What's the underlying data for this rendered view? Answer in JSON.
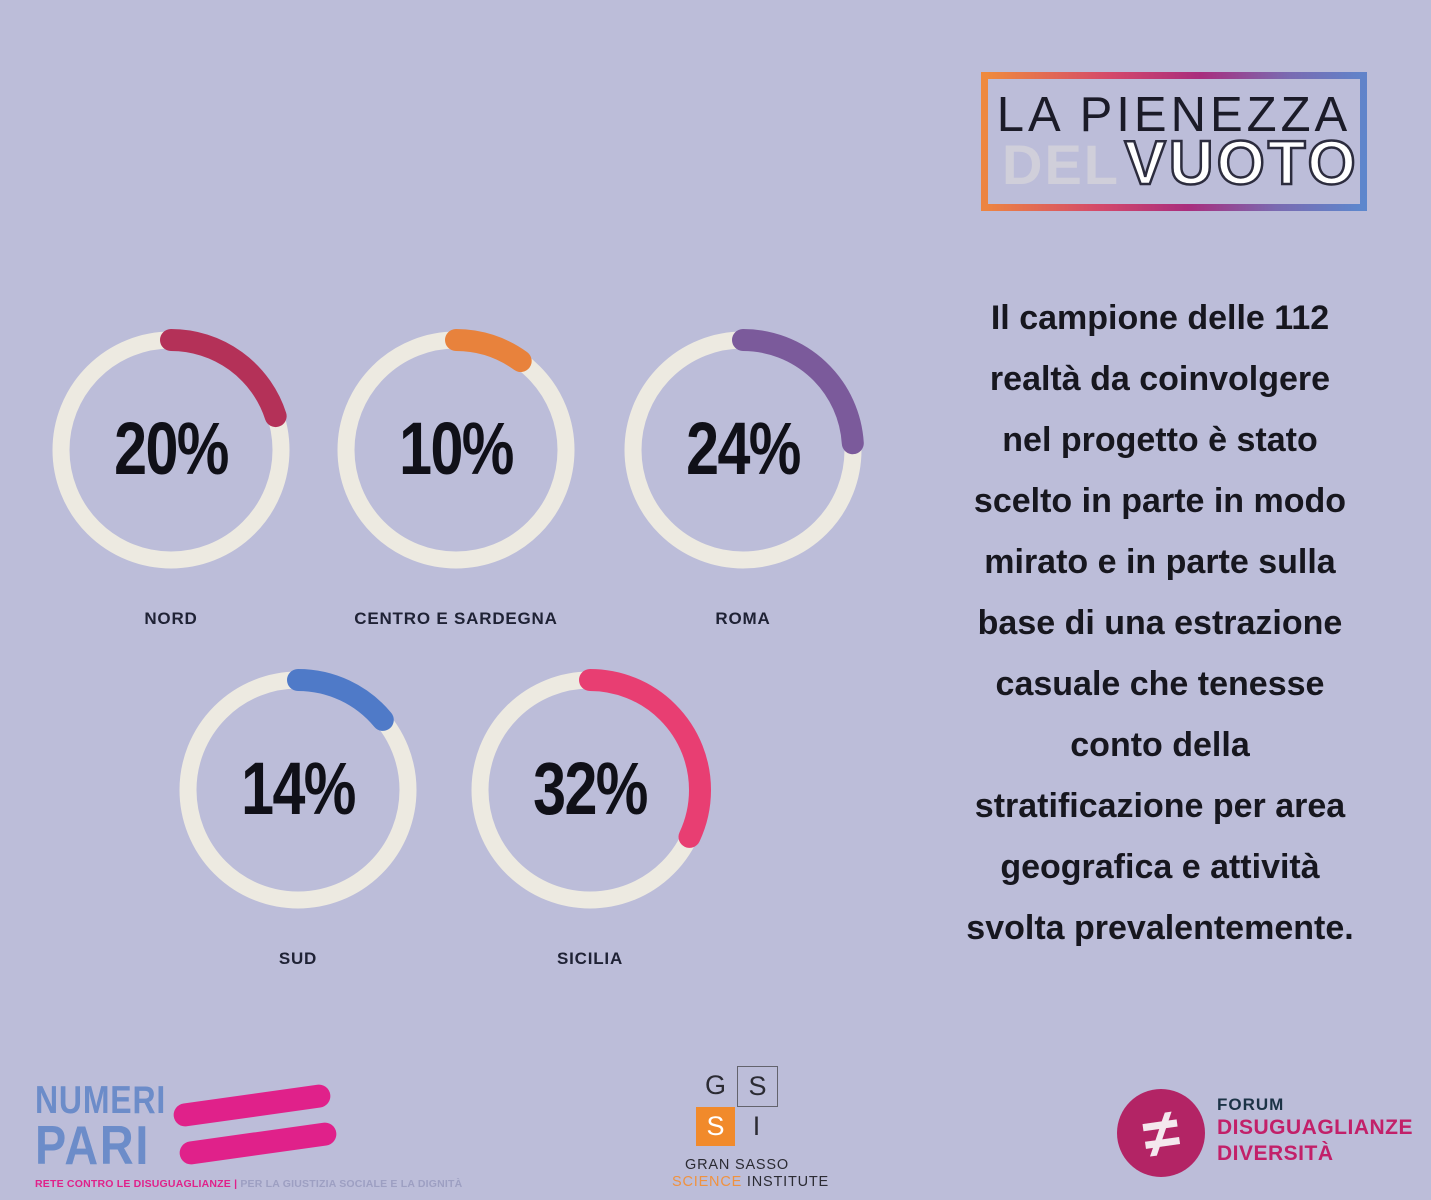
{
  "colors": {
    "background": "#bcbdd9",
    "ring": "#edeae1",
    "text_dark": "#17171f"
  },
  "header_logo": {
    "title_line1": "LA PIENEZZA",
    "title_line2_faint": "DEL",
    "title_line2": "VUOTO",
    "frame_gradient": [
      "#ef8a3e",
      "#a92d7d",
      "#5d87cd"
    ]
  },
  "chart_data": {
    "type": "pie",
    "variant": "progress-donut-rings",
    "unit": "%",
    "ring_color": "#edeae1",
    "items": [
      {
        "label": "NORD",
        "value": 20,
        "value_label": "20%",
        "color": "#b43158"
      },
      {
        "label": "CENTRO E SARDEGNA",
        "value": 10,
        "value_label": "10%",
        "color": "#e8823c"
      },
      {
        "label": "ROMA",
        "value": 24,
        "value_label": "24%",
        "color": "#7b5a9b"
      },
      {
        "label": "SUD",
        "value": 14,
        "value_label": "14%",
        "color": "#4f7ac8"
      },
      {
        "label": "SICILIA",
        "value": 32,
        "value_label": "32%",
        "color": "#e83e72"
      }
    ]
  },
  "paragraph": {
    "lines": [
      "Il campione delle 112",
      "realtà da coinvolgere",
      "nel progetto è stato",
      "scelto in parte in modo",
      "mirato e in parte sulla",
      "base di una estrazione",
      "casuale che tenesse",
      "conto della",
      "stratificazione per area",
      "geografica e attività",
      "svolta prevalentemente."
    ]
  },
  "footer": {
    "numeri_pari": {
      "word1": "NUMERI",
      "word2": "PARI",
      "tagline_accent": "RETE CONTRO LE DISUGUAGLIANZE |",
      "tagline_rest": " PER LA GIUSTIZIA SOCIALE E LA DIGNITÀ",
      "blue": "#6c8cc9",
      "pink": "#e0218a"
    },
    "gssi": {
      "letter_g": "G",
      "letter_s1": "S",
      "letter_s2": "S",
      "letter_i": "I",
      "name_line1": "GRAN SASSO",
      "name_accent": "SCIENCE",
      "name_rest": " INSTITUTE",
      "orange": "#f18a2b"
    },
    "forum": {
      "symbol": "≠",
      "line1": "FORUM",
      "line2": "DISUGUAGLIANZE",
      "line3": "DIVERSITÀ",
      "circle": "#b32465",
      "navy": "#1c3346",
      "magenta": "#c22069"
    }
  }
}
